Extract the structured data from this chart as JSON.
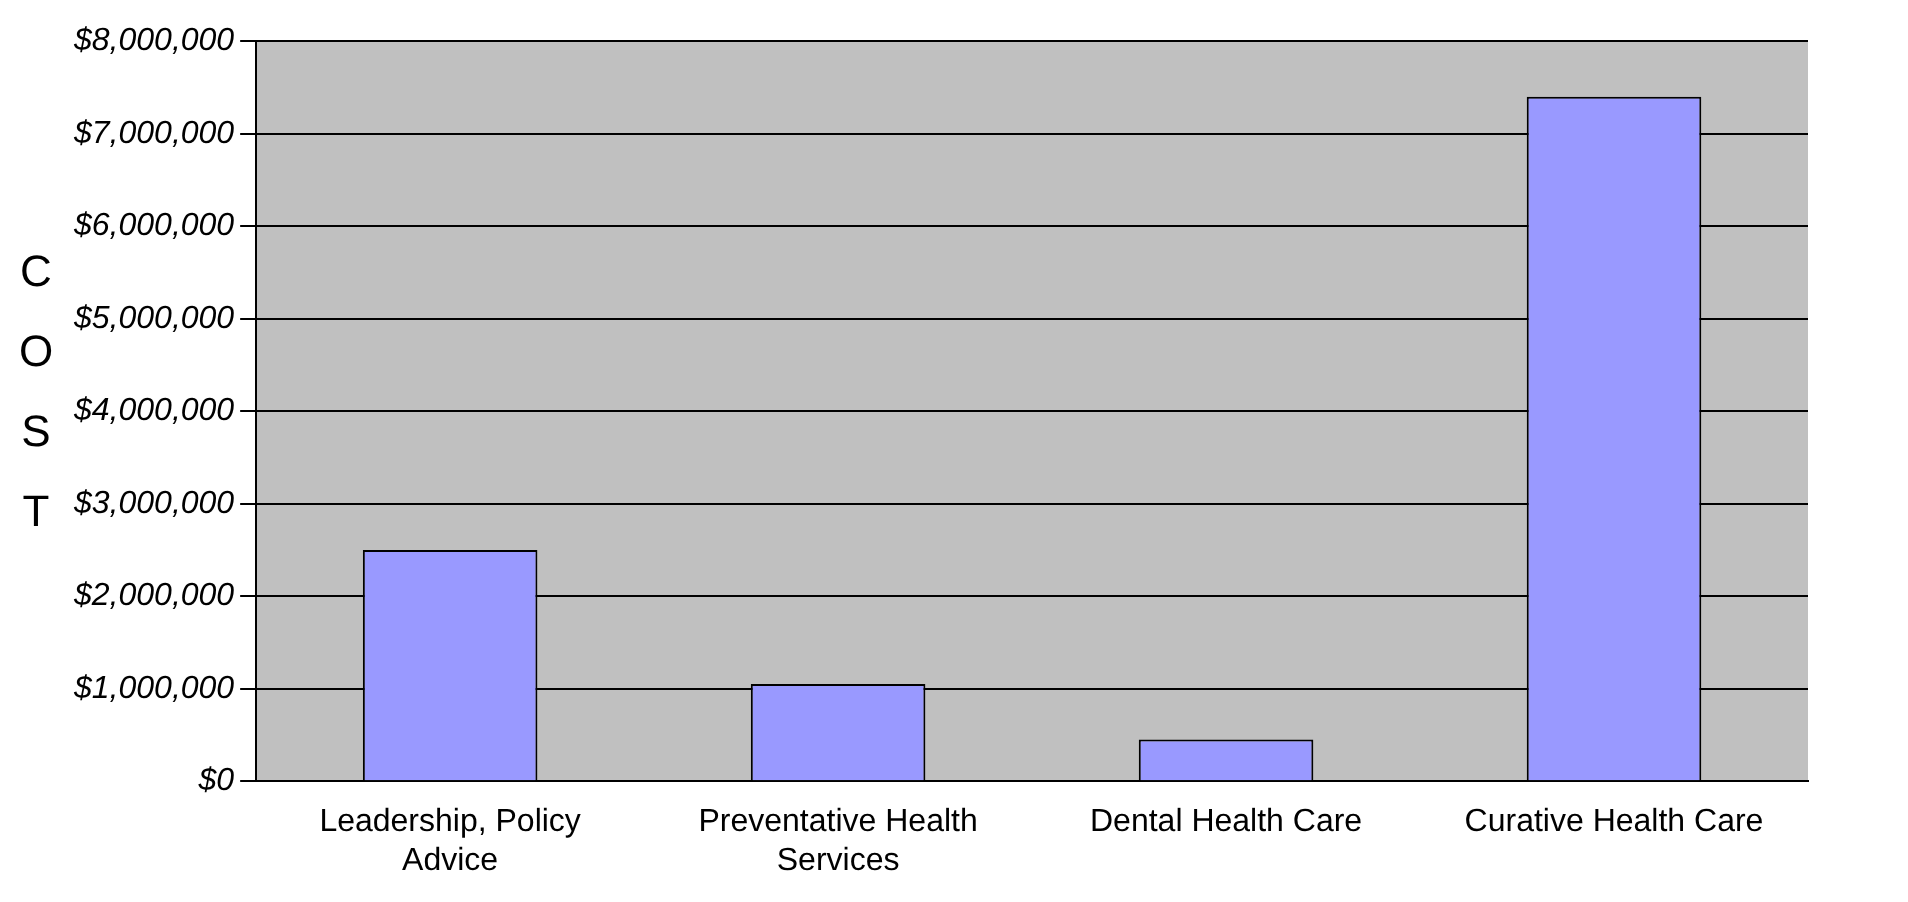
{
  "chart_data": {
    "type": "bar",
    "ylabel": "COST",
    "categories": [
      "Leadership, Policy Advice",
      "Preventative Health Services",
      "Dental Health Care",
      "Curative Health Care"
    ],
    "values": [
      2500000,
      1050000,
      450000,
      7400000
    ],
    "color": "#9999ff",
    "ylim": [
      0,
      8000000
    ],
    "yticks": [
      {
        "value": 0,
        "label": "$0"
      },
      {
        "value": 1000000,
        "label": "$1,000,000"
      },
      {
        "value": 2000000,
        "label": "$2,000,000"
      },
      {
        "value": 3000000,
        "label": "$3,000,000"
      },
      {
        "value": 4000000,
        "label": "$4,000,000"
      },
      {
        "value": 5000000,
        "label": "$5,000,000"
      },
      {
        "value": 6000000,
        "label": "$6,000,000"
      },
      {
        "value": 7000000,
        "label": "$7,000,000"
      },
      {
        "value": 8000000,
        "label": "$8,000,000"
      }
    ],
    "grid": "y"
  }
}
